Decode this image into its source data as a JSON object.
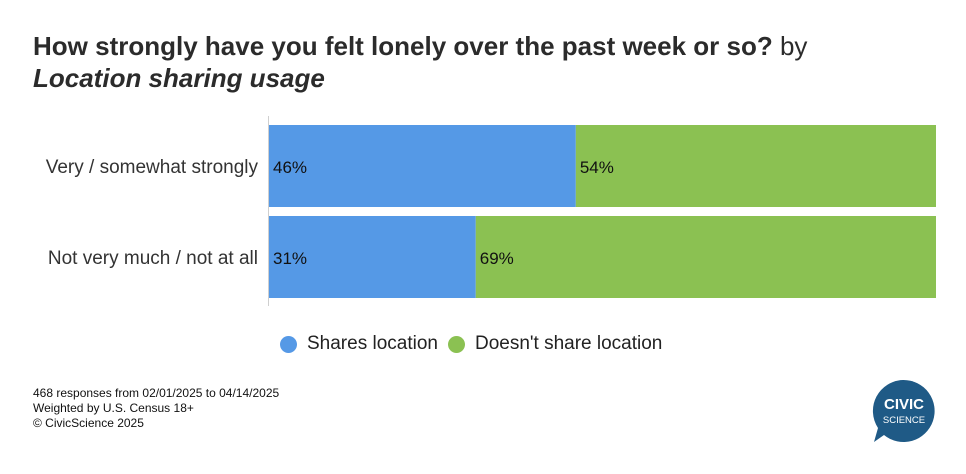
{
  "title": {
    "question": "How strongly have you felt lonely over the past week or so?",
    "by": " by",
    "dimension": "Location sharing usage"
  },
  "legend": [
    {
      "label": "Shares location",
      "color": "#5599e6"
    },
    {
      "label": "Doesn't share location",
      "color": "#8bc152"
    }
  ],
  "footer": {
    "line1": "468 responses from 02/01/2025 to 04/14/2025",
    "line2": "Weighted by U.S. Census 18+",
    "line3": "© CivicScience 2025"
  },
  "logo": {
    "top": "CIVIC",
    "bottom": "SCIENCE",
    "color": "#1f5a86"
  },
  "chart_data": {
    "type": "bar",
    "orientation": "horizontal",
    "stacked": true,
    "categories": [
      "Very / somewhat strongly",
      "Not very much / not at all"
    ],
    "series": [
      {
        "name": "Shares location",
        "values": [
          46,
          31
        ],
        "color": "#5599e6"
      },
      {
        "name": "Doesn't share location",
        "values": [
          54,
          69
        ],
        "color": "#8bc152"
      }
    ],
    "value_suffix": "%",
    "xlim": [
      0,
      100
    ],
    "grid": false,
    "legend_position": "bottom"
  }
}
